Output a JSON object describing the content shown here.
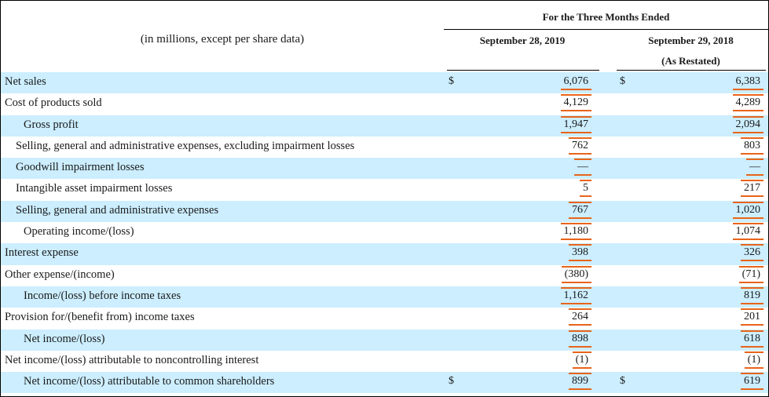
{
  "header": {
    "period_title": "For the Three Months Ended",
    "units_note": "(in millions, except per share data)",
    "col1_label": "September 28, 2019",
    "col2_label": "September 29, 2018",
    "col2_sublabel": "(As Restated)"
  },
  "currency_symbol": "$",
  "rows": [
    {
      "label": "Net sales",
      "indent": 0,
      "shade": true,
      "currency": true,
      "c1": "6,076",
      "c2": "6,383"
    },
    {
      "label": "Cost of products sold",
      "indent": 0,
      "shade": false,
      "currency": false,
      "c1": "4,129",
      "c2": "4,289"
    },
    {
      "label": "Gross profit",
      "indent": 2,
      "shade": true,
      "currency": false,
      "c1": "1,947",
      "c2": "2,094"
    },
    {
      "label": "Selling, general and administrative expenses, excluding impairment losses",
      "indent": 1,
      "shade": false,
      "currency": false,
      "c1": "762",
      "c2": "803"
    },
    {
      "label": "Goodwill impairment losses",
      "indent": 1,
      "shade": true,
      "currency": false,
      "c1": "—",
      "c2": "—"
    },
    {
      "label": "Intangible asset impairment losses",
      "indent": 1,
      "shade": false,
      "currency": false,
      "c1": "5",
      "c2": "217"
    },
    {
      "label": "Selling, general and administrative expenses",
      "indent": 1,
      "shade": true,
      "currency": false,
      "c1": "767",
      "c2": "1,020"
    },
    {
      "label": "Operating income/(loss)",
      "indent": 2,
      "shade": false,
      "currency": false,
      "c1": "1,180",
      "c2": "1,074"
    },
    {
      "label": "Interest expense",
      "indent": 0,
      "shade": true,
      "currency": false,
      "c1": "398",
      "c2": "326"
    },
    {
      "label": "Other expense/(income)",
      "indent": 0,
      "shade": false,
      "currency": false,
      "c1": "(380)",
      "c2": "(71)"
    },
    {
      "label": "Income/(loss) before income taxes",
      "indent": 2,
      "shade": true,
      "currency": false,
      "c1": "1,162",
      "c2": "819"
    },
    {
      "label": "Provision for/(benefit from) income taxes",
      "indent": 0,
      "shade": false,
      "currency": false,
      "c1": "264",
      "c2": "201"
    },
    {
      "label": "Net income/(loss)",
      "indent": 2,
      "shade": true,
      "currency": false,
      "c1": "898",
      "c2": "618"
    },
    {
      "label": "Net income/(loss) attributable to noncontrolling interest",
      "indent": 0,
      "shade": false,
      "currency": false,
      "c1": "(1)",
      "c2": "(1)"
    },
    {
      "label": "Net income/(loss) attributable to common shareholders",
      "indent": 2,
      "shade": true,
      "currency": true,
      "c1": "899",
      "c2": "619"
    }
  ],
  "colors": {
    "row_shade": "#cceeff",
    "highlight_underline": "#e8641a"
  }
}
